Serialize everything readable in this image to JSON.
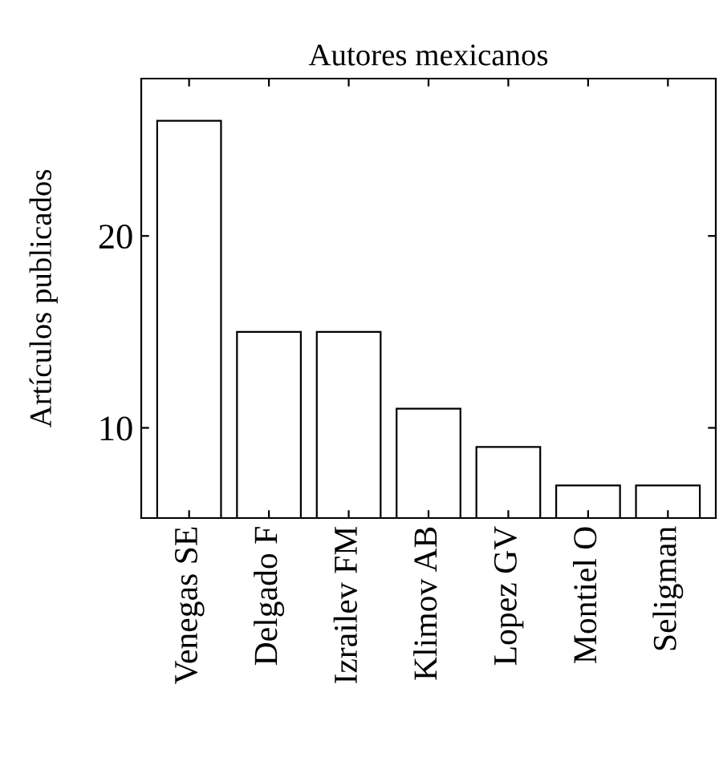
{
  "chart_data": {
    "type": "bar",
    "title": "Autores mexicanos",
    "ylabel": "Artículos publicados",
    "categories": [
      "Venegas SE",
      "Delgado F",
      "Izrailev FM",
      "Klimov AB",
      "Lopez GV",
      "Montiel O",
      "Seligman"
    ],
    "values": [
      26,
      15,
      15,
      11,
      9,
      7,
      7
    ],
    "color": "#ffffff",
    "ylim": [
      5.3,
      28.2
    ],
    "yticks": [
      10,
      20
    ],
    "grid": false
  }
}
